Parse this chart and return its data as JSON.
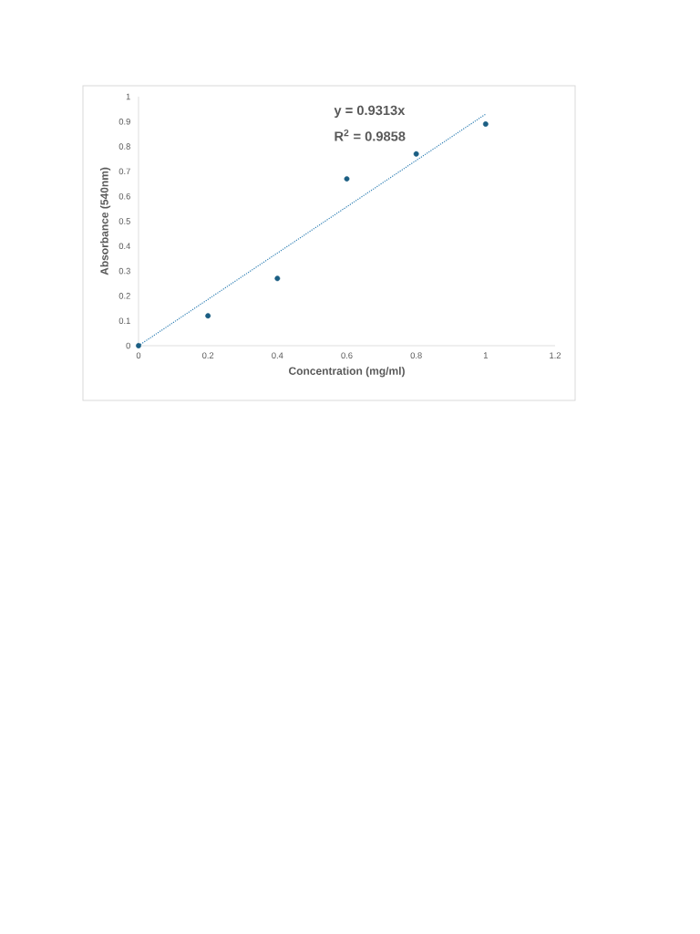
{
  "chart_data": {
    "type": "scatter",
    "xlabel": "Concentration (mg/ml)",
    "ylabel": "Absorbance (540nm)",
    "annotations": [
      "y = 0.9313x",
      "R$^{2}$ = 0.9858"
    ],
    "series": [
      {
        "marker": "circle",
        "color": "#1b5e83",
        "x": [
          0,
          0.2,
          0.4,
          0.6,
          0.8,
          1
        ],
        "values": [
          0,
          0.12,
          0.27,
          0.67,
          0.77,
          0.89
        ]
      },
      {
        "type": "line",
        "marker": "none",
        "color": "#2e7fb4",
        "line_style": "dotted",
        "x": [
          0,
          1
        ],
        "values": [
          0,
          0.93
        ]
      }
    ],
    "grid": false,
    "xlim": [
      0,
      1.2
    ],
    "ylim": [
      0,
      1
    ],
    "xticks": [
      0,
      0.2,
      0.4,
      0.6,
      0.8,
      1,
      1.2
    ],
    "yticks": [
      0,
      0.1,
      0.2,
      0.3,
      0.4,
      0.5,
      0.6,
      0.7,
      0.8,
      0.9,
      1
    ]
  }
}
